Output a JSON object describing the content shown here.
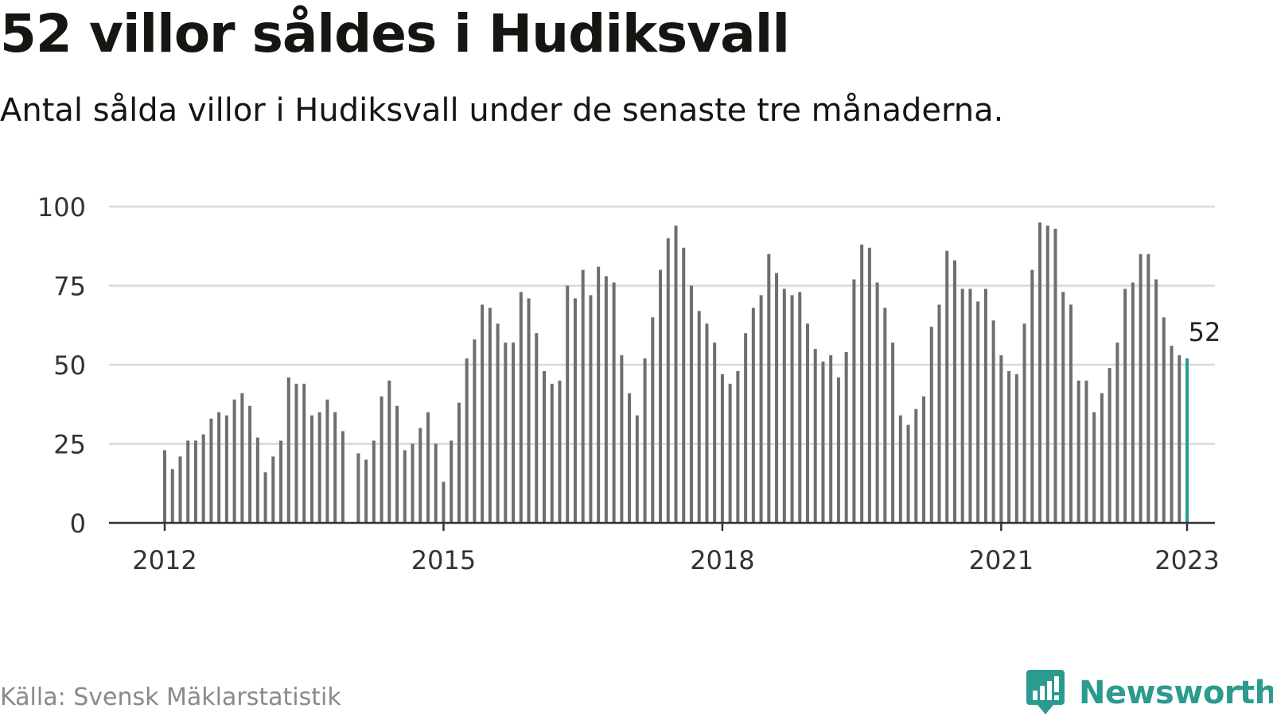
{
  "header": {
    "title": "52 villor såldes i Hudiksvall",
    "subtitle": "Antal sålda villor i Hudiksvall under de senaste tre månaderna."
  },
  "footer": {
    "source": "Källa: Svensk Mäklarstatistik",
    "brand": "Newsworthy"
  },
  "colors": {
    "bar": "#6e6e72",
    "highlight": "#2b9a8f",
    "grid": "#d9d9d9",
    "axis": "#333333",
    "brand": "#2b9a8f"
  },
  "icons": {
    "logo": "newsworthy-chat-bar-icon"
  },
  "chart_data": {
    "type": "bar",
    "title": "52 villor såldes i Hudiksvall",
    "subtitle": "Antal sålda villor i Hudiksvall under de senaste tre månaderna.",
    "xlabel": "",
    "ylabel": "",
    "x_start": "2012-01",
    "x_end": "2023-01",
    "ylim": [
      0,
      100
    ],
    "yticks": [
      0,
      25,
      50,
      75,
      100
    ],
    "xticks": [
      {
        "label": "2012",
        "date": "2012-01"
      },
      {
        "label": "2015",
        "date": "2015-01"
      },
      {
        "label": "2018",
        "date": "2018-01"
      },
      {
        "label": "2021",
        "date": "2021-01"
      },
      {
        "label": "2023",
        "date": "2023-01"
      }
    ],
    "grid": true,
    "legend": "none",
    "highlight": {
      "date": "2023-01",
      "value": 52,
      "label": "52"
    },
    "values": [
      23,
      17,
      21,
      26,
      26,
      28,
      33,
      35,
      34,
      39,
      41,
      37,
      27,
      16,
      21,
      26,
      46,
      44,
      44,
      34,
      35,
      39,
      35,
      29,
      null,
      22,
      20,
      26,
      40,
      45,
      37,
      23,
      25,
      30,
      35,
      25,
      13,
      26,
      38,
      52,
      58,
      69,
      68,
      63,
      57,
      57,
      73,
      71,
      60,
      48,
      44,
      45,
      75,
      71,
      80,
      72,
      81,
      78,
      76,
      53,
      41,
      34,
      52,
      65,
      80,
      90,
      94,
      87,
      75,
      67,
      63,
      57,
      47,
      44,
      48,
      60,
      68,
      72,
      85,
      79,
      74,
      72,
      73,
      63,
      55,
      51,
      53,
      46,
      54,
      77,
      88,
      87,
      76,
      68,
      57,
      34,
      31,
      36,
      40,
      62,
      69,
      86,
      83,
      74,
      74,
      70,
      74,
      64,
      53,
      48,
      47,
      63,
      80,
      95,
      94,
      93,
      73,
      69,
      45,
      45,
      35,
      41,
      49,
      57,
      74,
      76,
      85,
      85,
      77,
      65,
      56,
      53,
      52
    ]
  }
}
